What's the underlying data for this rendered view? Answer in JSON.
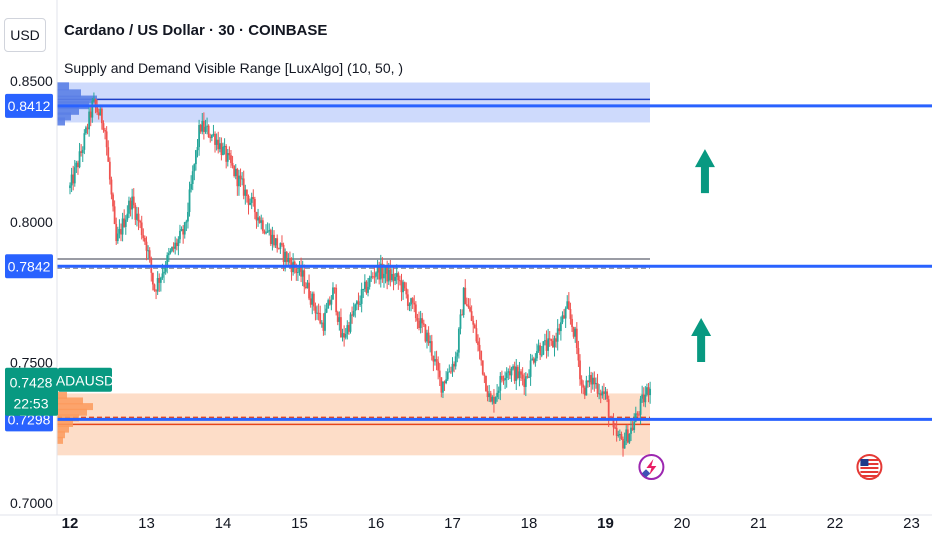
{
  "header": {
    "unit": "USD",
    "title": "Cardano / US Dollar · 30 · COINBASE",
    "indicator": "Supply and Demand Visible Range [LuxAlgo] (10, 50, )"
  },
  "colors": {
    "up": "#26a69a",
    "down": "#ef5350",
    "level_line": "#2962ff",
    "supply_zone": "#c6d3fb",
    "demand_zone": "#fdd9c2",
    "profile_blue": "#5b7fe6",
    "profile_orange": "#fb9a5c",
    "price_tag": "#089981",
    "equilibrium_line": "#787b86"
  },
  "chart_data": {
    "type": "candlestick",
    "symbol": "ADAUSD",
    "x_ticks": [
      "12",
      "13",
      "14",
      "15",
      "16",
      "17",
      "18",
      "19",
      "20",
      "21",
      "22",
      "23"
    ],
    "y_ticks": [
      "0.8500",
      "0.8000",
      "0.7500",
      "0.7000"
    ],
    "ylim": [
      0.6958,
      0.8575
    ],
    "current_price": "0.7428",
    "countdown": "22:53",
    "price_labels": [
      "0.8412",
      "0.7842",
      "0.7298"
    ],
    "levels": [
      0.8412,
      0.7842,
      0.7298
    ],
    "supply_zone": {
      "top": 0.8495,
      "bottom": 0.8353,
      "mid": 0.8413,
      "avg": 0.8435
    },
    "equilibrium": 0.7868,
    "demand_zone": {
      "top": 0.739,
      "bottom": 0.717,
      "mid": 0.728,
      "avg": 0.7305
    },
    "trajectory": [
      [
        12.0,
        0.812
      ],
      [
        12.15,
        0.825
      ],
      [
        12.3,
        0.842
      ],
      [
        12.45,
        0.835
      ],
      [
        12.6,
        0.792
      ],
      [
        12.8,
        0.808
      ],
      [
        13.0,
        0.792
      ],
      [
        13.1,
        0.776
      ],
      [
        13.3,
        0.788
      ],
      [
        13.5,
        0.797
      ],
      [
        13.7,
        0.834
      ],
      [
        13.9,
        0.83
      ],
      [
        14.1,
        0.82
      ],
      [
        14.3,
        0.81
      ],
      [
        14.5,
        0.8
      ],
      [
        14.8,
        0.788
      ],
      [
        15.05,
        0.78
      ],
      [
        15.3,
        0.763
      ],
      [
        15.45,
        0.776
      ],
      [
        15.55,
        0.758
      ],
      [
        15.8,
        0.773
      ],
      [
        16.0,
        0.783
      ],
      [
        16.3,
        0.779
      ],
      [
        16.5,
        0.768
      ],
      [
        16.7,
        0.757
      ],
      [
        16.85,
        0.742
      ],
      [
        17.05,
        0.752
      ],
      [
        17.15,
        0.775
      ],
      [
        17.3,
        0.76
      ],
      [
        17.5,
        0.735
      ],
      [
        17.7,
        0.748
      ],
      [
        17.95,
        0.744
      ],
      [
        18.1,
        0.755
      ],
      [
        18.3,
        0.756
      ],
      [
        18.5,
        0.769
      ],
      [
        18.6,
        0.76
      ],
      [
        18.7,
        0.74
      ],
      [
        18.82,
        0.744
      ],
      [
        19.0,
        0.738
      ],
      [
        19.1,
        0.725
      ],
      [
        19.22,
        0.7215
      ],
      [
        19.35,
        0.727
      ],
      [
        19.48,
        0.736
      ],
      [
        19.6,
        0.7428
      ]
    ],
    "markers": [
      {
        "type": "arrow-up",
        "x": 20.3,
        "y": 0.818
      },
      {
        "type": "arrow-up",
        "x": 20.25,
        "y": 0.758
      }
    ]
  }
}
